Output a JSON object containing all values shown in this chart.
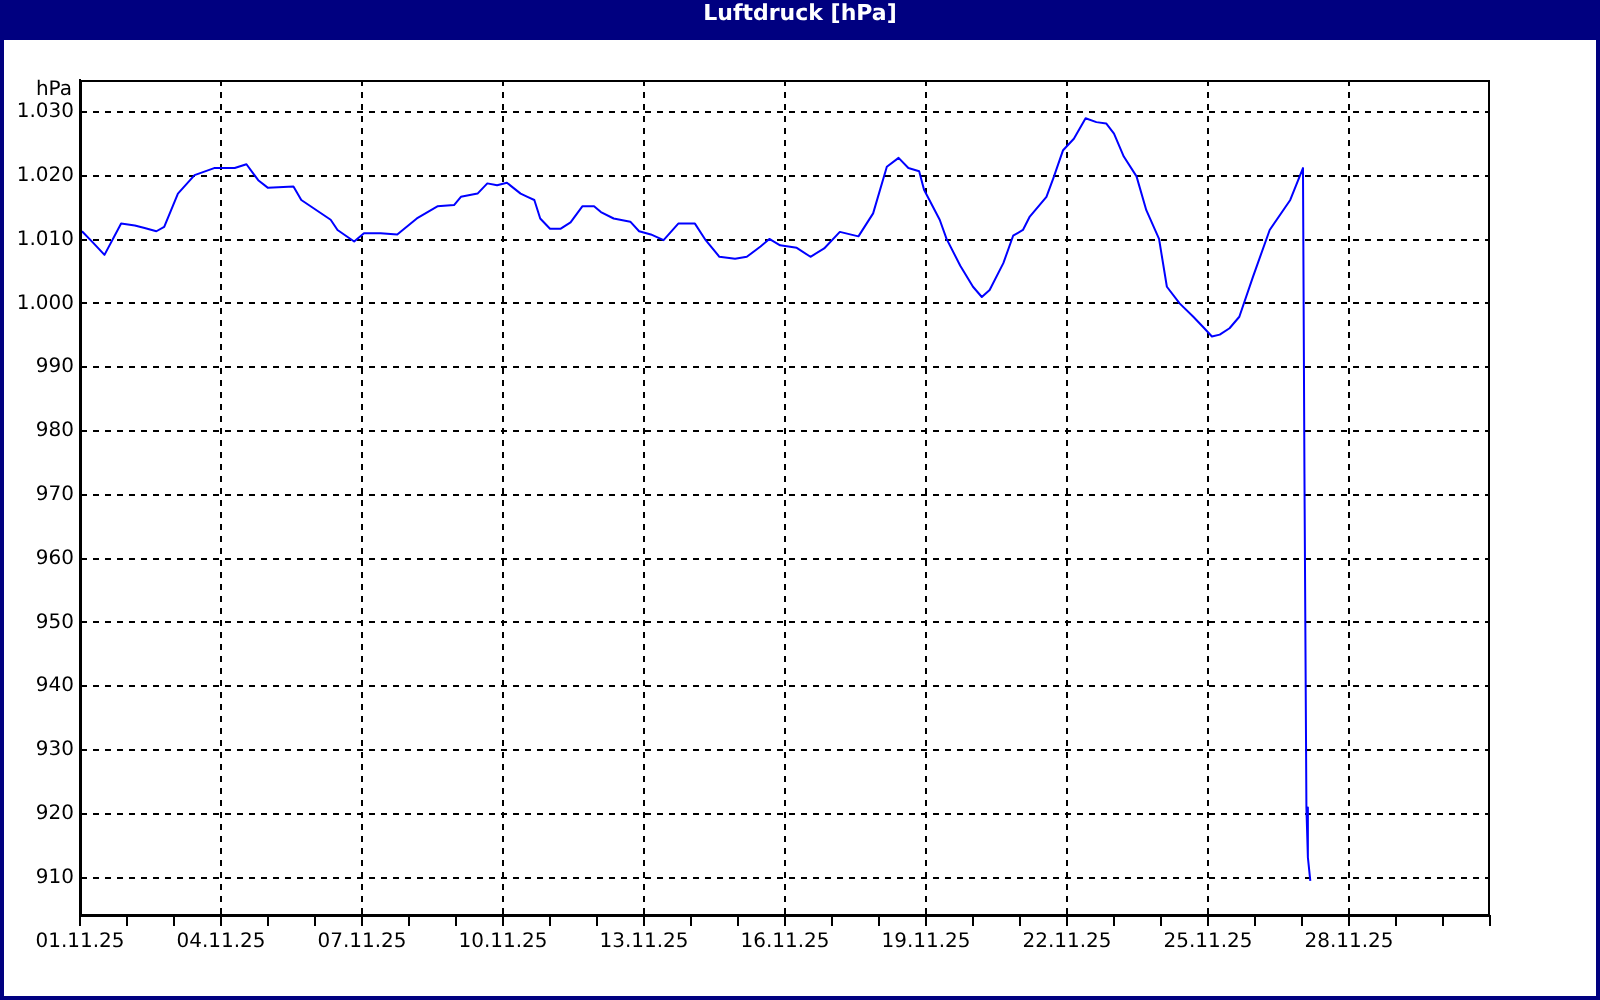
{
  "chart_data": {
    "type": "line",
    "title": "Luftdruck [hPa]",
    "ylabel": "hPa",
    "xlim": [
      "--11-01",
      "--12-01"
    ],
    "xticks": [
      {
        "value": "--11-01",
        "label": "01.11.25"
      },
      {
        "value": "--11-02",
        "label": null
      },
      {
        "value": "--11-03",
        "label": null
      },
      {
        "value": "--11-04",
        "label": "04.11.25"
      },
      {
        "value": "--11-05",
        "label": null
      },
      {
        "value": "--11-06",
        "label": null
      },
      {
        "value": "--11-07",
        "label": "07.11.25"
      },
      {
        "value": "--11-08",
        "label": null
      },
      {
        "value": "--11-09",
        "label": null
      },
      {
        "value": "--11-10",
        "label": "10.11.25"
      },
      {
        "value": "--11-11",
        "label": null
      },
      {
        "value": "--11-12",
        "label": null
      },
      {
        "value": "--11-13",
        "label": "13.11.25"
      },
      {
        "value": "--11-14",
        "label": null
      },
      {
        "value": "--11-15",
        "label": null
      },
      {
        "value": "--11-16",
        "label": "16.11.25"
      },
      {
        "value": "--11-17",
        "label": null
      },
      {
        "value": "--11-18",
        "label": null
      },
      {
        "value": "--11-19",
        "label": "19.11.25"
      },
      {
        "value": "--11-20",
        "label": null
      },
      {
        "value": "--11-21",
        "label": null
      },
      {
        "value": "--11-22",
        "label": "22.11.25"
      },
      {
        "value": "--11-23",
        "label": null
      },
      {
        "value": "--11-24",
        "label": null
      },
      {
        "value": "--11-25",
        "label": "25.11.25"
      },
      {
        "value": "--11-26",
        "label": null
      },
      {
        "value": "--11-27",
        "label": null
      },
      {
        "value": "--11-28",
        "label": "28.11.25"
      },
      {
        "value": "--11-29",
        "label": null
      },
      {
        "value": "--11-30",
        "label": null
      },
      {
        "value": "--12-01",
        "label": null
      }
    ],
    "ylim": [
      904,
      1035
    ],
    "yticks": [
      910,
      920,
      930,
      940,
      950,
      960,
      970,
      980,
      990,
      {
        "value": 1000,
        "label": "1.000"
      },
      {
        "value": 1010,
        "label": "1.010"
      },
      {
        "value": 1020,
        "label": "1.020"
      },
      {
        "value": 1030,
        "label": "1.030"
      }
    ],
    "grid": true,
    "legend": false,
    "marker": "none",
    "line_style": "solid",
    "series": [
      {
        "color": "#0000ff",
        "x": [
          "--11-01T01:00",
          "--11-01T07:00",
          "--11-01T12:30",
          "--11-01T21:00",
          "--11-02T04:00",
          "--11-02T09:00",
          "--11-02T15:00",
          "--11-02T19:00",
          "--11-03T02:00",
          "--11-03T10:30",
          "--11-03T20:30",
          "--11-04T07:00",
          "--11-04T13:00",
          "--11-04T19:00",
          "--11-05T00:00",
          "--11-05T13:00",
          "--11-05T17:00",
          "--11-06T08:00",
          "--11-06T11:30",
          "--11-06T20:00",
          "--11-07T01:00",
          "--11-07T09:30",
          "--11-07T18:00",
          "--11-08T04:00",
          "--11-08T14:30",
          "--11-08T23:00",
          "--11-09T02:30",
          "--11-09T11:00",
          "--11-09T16:00",
          "--11-09T21:00",
          "--11-10T02:00",
          "--11-10T09:00",
          "--11-10T12:30",
          "--11-10T16:00",
          "--11-10T19:00",
          "--11-11T00:00",
          "--11-11T05:30",
          "--11-11T10:30",
          "--11-11T16:30",
          "--11-11T22:30",
          "--11-12T02:00",
          "--11-12T08:30",
          "--11-12T17:00",
          "--11-12T21:30",
          "--11-13T03:30",
          "--11-13T10:00",
          "--11-13T17:30",
          "--11-14T02:00",
          "--11-14T07:30",
          "--11-14T14:30",
          "--11-14T22:30",
          "--11-15T04:30",
          "--11-15T11:30",
          "--11-15T16:00",
          "--11-15T21:30",
          "--11-16T06:00",
          "--11-16T13:00",
          "--11-16T20:00",
          "--11-17T04:00",
          "--11-17T13:30",
          "--11-17T21:00",
          "--11-18T04:00",
          "--11-18T10:00",
          "--11-18T15:00",
          "--11-18T20:30",
          "--11-18T23:00",
          "--11-19T07:00",
          "--11-19T10:30",
          "--11-19T17:30",
          "--11-20T00:00",
          "--11-20T04:30",
          "--11-20T08:30",
          "--11-20T15:30",
          "--11-20T20:30",
          "--11-21T01:30",
          "--11-21T05:00",
          "--11-21T13:30",
          "--11-21T17:00",
          "--11-21T22:00",
          "--11-22T03:30",
          "--11-22T09:30",
          "--11-22T15:00",
          "--11-22T20:00",
          "--11-23T00:00",
          "--11-23T05:00",
          "--11-23T11:30",
          "--11-23T16:30",
          "--11-23T23:00",
          "--11-24T03:00",
          "--11-24T09:30",
          "--11-24T16:30",
          "--11-24T21:30",
          "--11-25T02:00",
          "--11-25T06:00",
          "--11-25T11:00",
          "--11-25T16:00",
          "--11-25T23:00",
          "--11-26T07:30",
          "--11-26T18:00",
          "--11-27T00:30",
          "--11-27T01:15",
          "--11-27T02:15",
          "--11-27T03:00",
          "--11-27T04:15"
        ],
        "values": [
          1011.3,
          1009.4,
          1007.6,
          1012.5,
          1012.2,
          1011.8,
          1011.3,
          1012.0,
          1017.2,
          1020.1,
          1021.2,
          1021.2,
          1021.8,
          1019.3,
          1018.1,
          1018.3,
          1016.2,
          1013.1,
          1011.5,
          1009.7,
          1011.0,
          1011.0,
          1010.8,
          1013.3,
          1015.2,
          1015.4,
          1016.7,
          1017.2,
          1018.8,
          1018.5,
          1018.9,
          1017.2,
          1016.7,
          1016.2,
          1013.3,
          1011.7,
          1011.7,
          1012.7,
          1015.2,
          1015.2,
          1014.3,
          1013.3,
          1012.8,
          1011.3,
          1010.8,
          1009.9,
          1012.5,
          1012.5,
          1009.9,
          1007.3,
          1007.0,
          1007.3,
          1008.9,
          1010.1,
          1009.1,
          1008.7,
          1007.3,
          1008.6,
          1011.2,
          1010.5,
          1014.1,
          1021.4,
          1022.8,
          1021.2,
          1020.7,
          1017.8,
          1013.1,
          1010.1,
          1005.9,
          1002.6,
          1001.0,
          1002.1,
          1006.3,
          1010.6,
          1011.5,
          1013.6,
          1016.7,
          1019.6,
          1024.0,
          1025.8,
          1029.0,
          1028.4,
          1028.2,
          1026.6,
          1023.0,
          1019.9,
          1014.6,
          1010.1,
          1002.6,
          1000.0,
          997.9,
          996.3,
          994.8,
          995.1,
          996.1,
          997.9,
          1004.2,
          1011.5,
          1016.2,
          1021.2,
          973.3,
          921.0,
          913.2,
          909.5
        ]
      }
    ]
  }
}
